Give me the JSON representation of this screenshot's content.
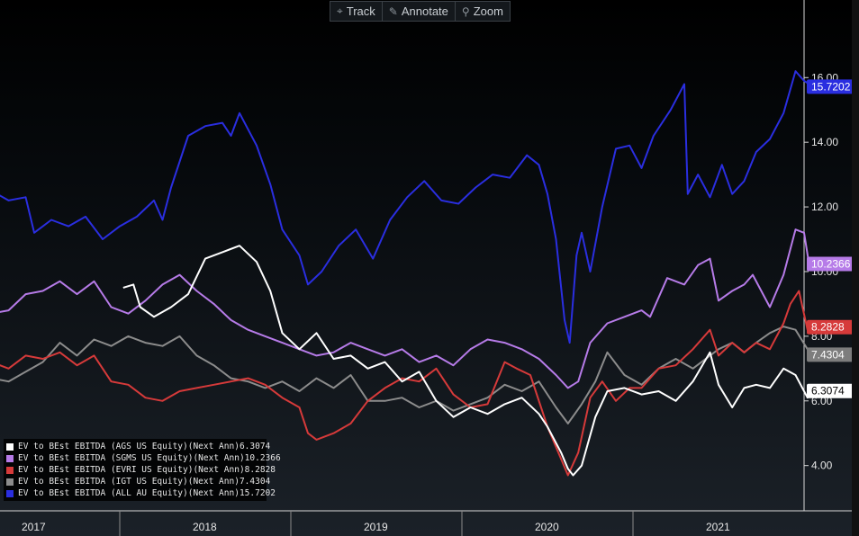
{
  "toolbar": {
    "track_label": "Track",
    "annotate_label": "Annotate",
    "zoom_label": "Zoom",
    "track_icon": "crosshair-icon",
    "annotate_icon": "pencil-icon",
    "zoom_icon": "magnifier-icon"
  },
  "chart_data": {
    "type": "line",
    "title": "",
    "xlabel": "",
    "ylabel": "",
    "ylim": [
      2.6,
      18.4
    ],
    "xlim": [
      2016.8,
      2021.5
    ],
    "yticks": [
      "4.00",
      "6.00",
      "8.00",
      "10.00",
      "12.00",
      "14.00",
      "16.00"
    ],
    "ytick_values": [
      4,
      6,
      8,
      10,
      12,
      14,
      16
    ],
    "xticks": [
      "2017",
      "2018",
      "2019",
      "2020",
      "2021"
    ],
    "xtick_positions": [
      2017.0,
      2018.0,
      2019.0,
      2020.0,
      2021.0
    ],
    "grid": false,
    "legend_position": "bottom-left",
    "series": [
      {
        "name": "EV to BEst EBITDA (AGS US Equity)(Next Ann)",
        "last": "6.3074",
        "color": "#ffffff",
        "points": [
          [
            2017.52,
            9.5
          ],
          [
            2017.58,
            9.6
          ],
          [
            2017.62,
            8.9
          ],
          [
            2017.7,
            8.6
          ],
          [
            2017.8,
            8.9
          ],
          [
            2017.9,
            9.3
          ],
          [
            2018.0,
            10.4
          ],
          [
            2018.1,
            10.6
          ],
          [
            2018.2,
            10.8
          ],
          [
            2018.3,
            10.3
          ],
          [
            2018.38,
            9.4
          ],
          [
            2018.45,
            8.1
          ],
          [
            2018.55,
            7.6
          ],
          [
            2018.65,
            8.1
          ],
          [
            2018.75,
            7.3
          ],
          [
            2018.85,
            7.4
          ],
          [
            2018.95,
            7.0
          ],
          [
            2019.05,
            7.2
          ],
          [
            2019.15,
            6.6
          ],
          [
            2019.25,
            6.9
          ],
          [
            2019.35,
            6.0
          ],
          [
            2019.45,
            5.5
          ],
          [
            2019.55,
            5.8
          ],
          [
            2019.65,
            5.6
          ],
          [
            2019.75,
            5.9
          ],
          [
            2019.85,
            6.1
          ],
          [
            2019.95,
            5.6
          ],
          [
            2020.0,
            5.2
          ],
          [
            2020.08,
            4.4
          ],
          [
            2020.12,
            3.9
          ],
          [
            2020.15,
            3.7
          ],
          [
            2020.2,
            4.0
          ],
          [
            2020.28,
            5.5
          ],
          [
            2020.35,
            6.3
          ],
          [
            2020.45,
            6.4
          ],
          [
            2020.55,
            6.2
          ],
          [
            2020.65,
            6.3
          ],
          [
            2020.75,
            6.0
          ],
          [
            2020.85,
            6.6
          ],
          [
            2020.95,
            7.5
          ],
          [
            2021.0,
            6.5
          ],
          [
            2021.08,
            5.8
          ],
          [
            2021.15,
            6.4
          ],
          [
            2021.22,
            6.5
          ],
          [
            2021.3,
            6.4
          ],
          [
            2021.38,
            7.0
          ],
          [
            2021.45,
            6.8
          ],
          [
            2021.52,
            6.1
          ],
          [
            2021.55,
            6.3074
          ]
        ]
      },
      {
        "name": "EV to BEst EBITDA (SGMS US Equity)(Next Ann)",
        "last": "10.2366",
        "color": "#b67be8",
        "points": [
          [
            2016.75,
            8.7
          ],
          [
            2016.85,
            8.8
          ],
          [
            2016.95,
            9.3
          ],
          [
            2017.05,
            9.4
          ],
          [
            2017.15,
            9.7
          ],
          [
            2017.25,
            9.3
          ],
          [
            2017.35,
            9.7
          ],
          [
            2017.45,
            8.9
          ],
          [
            2017.55,
            8.7
          ],
          [
            2017.65,
            9.1
          ],
          [
            2017.75,
            9.6
          ],
          [
            2017.85,
            9.9
          ],
          [
            2017.95,
            9.4
          ],
          [
            2018.05,
            9.0
          ],
          [
            2018.15,
            8.5
          ],
          [
            2018.25,
            8.2
          ],
          [
            2018.35,
            8.0
          ],
          [
            2018.45,
            7.8
          ],
          [
            2018.55,
            7.6
          ],
          [
            2018.65,
            7.4
          ],
          [
            2018.75,
            7.5
          ],
          [
            2018.85,
            7.8
          ],
          [
            2018.95,
            7.6
          ],
          [
            2019.05,
            7.4
          ],
          [
            2019.15,
            7.6
          ],
          [
            2019.25,
            7.2
          ],
          [
            2019.35,
            7.4
          ],
          [
            2019.45,
            7.1
          ],
          [
            2019.55,
            7.6
          ],
          [
            2019.65,
            7.9
          ],
          [
            2019.75,
            7.8
          ],
          [
            2019.85,
            7.6
          ],
          [
            2019.95,
            7.3
          ],
          [
            2020.05,
            6.8
          ],
          [
            2020.12,
            6.4
          ],
          [
            2020.18,
            6.6
          ],
          [
            2020.25,
            7.8
          ],
          [
            2020.35,
            8.4
          ],
          [
            2020.45,
            8.6
          ],
          [
            2020.55,
            8.8
          ],
          [
            2020.6,
            8.6
          ],
          [
            2020.7,
            9.8
          ],
          [
            2020.8,
            9.6
          ],
          [
            2020.88,
            10.2
          ],
          [
            2020.95,
            10.4
          ],
          [
            2021.0,
            9.1
          ],
          [
            2021.08,
            9.4
          ],
          [
            2021.15,
            9.6
          ],
          [
            2021.2,
            9.9
          ],
          [
            2021.3,
            8.9
          ],
          [
            2021.38,
            9.9
          ],
          [
            2021.45,
            11.3
          ],
          [
            2021.5,
            11.2
          ],
          [
            2021.53,
            10.2
          ],
          [
            2021.55,
            10.2366
          ]
        ]
      },
      {
        "name": "EV to BEst EBITDA (EVRI US Equity)(Next Ann)",
        "last": "8.2828",
        "color": "#d63a3a",
        "points": [
          [
            2016.75,
            7.2
          ],
          [
            2016.85,
            7.0
          ],
          [
            2016.95,
            7.4
          ],
          [
            2017.05,
            7.3
          ],
          [
            2017.15,
            7.5
          ],
          [
            2017.25,
            7.1
          ],
          [
            2017.35,
            7.4
          ],
          [
            2017.45,
            6.6
          ],
          [
            2017.55,
            6.5
          ],
          [
            2017.65,
            6.1
          ],
          [
            2017.75,
            6.0
          ],
          [
            2017.85,
            6.3
          ],
          [
            2017.95,
            6.4
          ],
          [
            2018.05,
            6.5
          ],
          [
            2018.15,
            6.6
          ],
          [
            2018.25,
            6.7
          ],
          [
            2018.35,
            6.5
          ],
          [
            2018.45,
            6.1
          ],
          [
            2018.55,
            5.8
          ],
          [
            2018.6,
            5.0
          ],
          [
            2018.65,
            4.8
          ],
          [
            2018.75,
            5.0
          ],
          [
            2018.85,
            5.3
          ],
          [
            2018.95,
            6.0
          ],
          [
            2019.05,
            6.4
          ],
          [
            2019.15,
            6.7
          ],
          [
            2019.25,
            6.6
          ],
          [
            2019.35,
            7.0
          ],
          [
            2019.45,
            6.2
          ],
          [
            2019.55,
            5.8
          ],
          [
            2019.65,
            5.9
          ],
          [
            2019.75,
            7.2
          ],
          [
            2019.82,
            7.0
          ],
          [
            2019.9,
            6.8
          ],
          [
            2020.0,
            5.2
          ],
          [
            2020.08,
            4.2
          ],
          [
            2020.12,
            3.7
          ],
          [
            2020.18,
            4.4
          ],
          [
            2020.25,
            6.1
          ],
          [
            2020.32,
            6.6
          ],
          [
            2020.4,
            6.0
          ],
          [
            2020.48,
            6.4
          ],
          [
            2020.55,
            6.4
          ],
          [
            2020.65,
            7.0
          ],
          [
            2020.75,
            7.1
          ],
          [
            2020.85,
            7.6
          ],
          [
            2020.95,
            8.2
          ],
          [
            2021.0,
            7.4
          ],
          [
            2021.08,
            7.8
          ],
          [
            2021.15,
            7.5
          ],
          [
            2021.22,
            7.8
          ],
          [
            2021.3,
            7.6
          ],
          [
            2021.38,
            8.4
          ],
          [
            2021.42,
            9.0
          ],
          [
            2021.47,
            9.4
          ],
          [
            2021.52,
            8.2
          ],
          [
            2021.55,
            8.2828
          ]
        ]
      },
      {
        "name": "EV to BEst EBITDA (IGT US Equity)(Next Ann)",
        "last": "7.4304",
        "color": "#8c8c8c",
        "points": [
          [
            2016.75,
            6.7
          ],
          [
            2016.85,
            6.6
          ],
          [
            2016.95,
            6.9
          ],
          [
            2017.05,
            7.2
          ],
          [
            2017.15,
            7.8
          ],
          [
            2017.25,
            7.4
          ],
          [
            2017.35,
            7.9
          ],
          [
            2017.45,
            7.7
          ],
          [
            2017.55,
            8.0
          ],
          [
            2017.65,
            7.8
          ],
          [
            2017.75,
            7.7
          ],
          [
            2017.85,
            8.0
          ],
          [
            2017.95,
            7.4
          ],
          [
            2018.05,
            7.1
          ],
          [
            2018.15,
            6.7
          ],
          [
            2018.25,
            6.6
          ],
          [
            2018.35,
            6.4
          ],
          [
            2018.45,
            6.6
          ],
          [
            2018.55,
            6.3
          ],
          [
            2018.65,
            6.7
          ],
          [
            2018.75,
            6.4
          ],
          [
            2018.85,
            6.8
          ],
          [
            2018.95,
            6.0
          ],
          [
            2019.05,
            6.0
          ],
          [
            2019.15,
            6.1
          ],
          [
            2019.25,
            5.8
          ],
          [
            2019.35,
            6.0
          ],
          [
            2019.45,
            5.7
          ],
          [
            2019.55,
            5.9
          ],
          [
            2019.65,
            6.1
          ],
          [
            2019.75,
            6.5
          ],
          [
            2019.85,
            6.3
          ],
          [
            2019.95,
            6.6
          ],
          [
            2020.05,
            5.8
          ],
          [
            2020.12,
            5.3
          ],
          [
            2020.2,
            5.9
          ],
          [
            2020.28,
            6.6
          ],
          [
            2020.35,
            7.5
          ],
          [
            2020.45,
            6.8
          ],
          [
            2020.55,
            6.5
          ],
          [
            2020.65,
            7.0
          ],
          [
            2020.75,
            7.3
          ],
          [
            2020.85,
            7.0
          ],
          [
            2020.95,
            7.4
          ],
          [
            2021.0,
            7.6
          ],
          [
            2021.08,
            7.8
          ],
          [
            2021.15,
            7.5
          ],
          [
            2021.22,
            7.8
          ],
          [
            2021.3,
            8.1
          ],
          [
            2021.38,
            8.3
          ],
          [
            2021.45,
            8.2
          ],
          [
            2021.52,
            7.6
          ],
          [
            2021.55,
            7.4304
          ]
        ]
      },
      {
        "name": "EV to BEst EBITDA (ALL AU Equity)(Next Ann)",
        "last": "15.7202",
        "color": "#2a2ee0",
        "points": [
          [
            2016.75,
            12.5
          ],
          [
            2016.85,
            12.2
          ],
          [
            2016.95,
            12.3
          ],
          [
            2017.0,
            11.2
          ],
          [
            2017.1,
            11.6
          ],
          [
            2017.2,
            11.4
          ],
          [
            2017.3,
            11.7
          ],
          [
            2017.4,
            11.0
          ],
          [
            2017.5,
            11.4
          ],
          [
            2017.6,
            11.7
          ],
          [
            2017.7,
            12.2
          ],
          [
            2017.75,
            11.6
          ],
          [
            2017.8,
            12.6
          ],
          [
            2017.9,
            14.2
          ],
          [
            2018.0,
            14.5
          ],
          [
            2018.1,
            14.6
          ],
          [
            2018.15,
            14.2
          ],
          [
            2018.2,
            14.9
          ],
          [
            2018.3,
            13.9
          ],
          [
            2018.38,
            12.7
          ],
          [
            2018.45,
            11.3
          ],
          [
            2018.55,
            10.5
          ],
          [
            2018.6,
            9.6
          ],
          [
            2018.68,
            10.0
          ],
          [
            2018.78,
            10.8
          ],
          [
            2018.88,
            11.3
          ],
          [
            2018.98,
            10.4
          ],
          [
            2019.08,
            11.6
          ],
          [
            2019.18,
            12.3
          ],
          [
            2019.28,
            12.8
          ],
          [
            2019.38,
            12.2
          ],
          [
            2019.48,
            12.1
          ],
          [
            2019.58,
            12.6
          ],
          [
            2019.68,
            13.0
          ],
          [
            2019.78,
            12.9
          ],
          [
            2019.88,
            13.6
          ],
          [
            2019.95,
            13.3
          ],
          [
            2020.0,
            12.4
          ],
          [
            2020.05,
            11.0
          ],
          [
            2020.1,
            8.5
          ],
          [
            2020.13,
            7.8
          ],
          [
            2020.17,
            10.5
          ],
          [
            2020.2,
            11.2
          ],
          [
            2020.25,
            10.0
          ],
          [
            2020.32,
            12.0
          ],
          [
            2020.4,
            13.8
          ],
          [
            2020.48,
            13.9
          ],
          [
            2020.55,
            13.2
          ],
          [
            2020.62,
            14.2
          ],
          [
            2020.72,
            15.0
          ],
          [
            2020.8,
            15.8
          ],
          [
            2020.82,
            12.4
          ],
          [
            2020.88,
            13.0
          ],
          [
            2020.95,
            12.3
          ],
          [
            2021.02,
            13.3
          ],
          [
            2021.08,
            12.4
          ],
          [
            2021.15,
            12.8
          ],
          [
            2021.22,
            13.7
          ],
          [
            2021.3,
            14.1
          ],
          [
            2021.38,
            14.9
          ],
          [
            2021.45,
            16.2
          ],
          [
            2021.5,
            15.9
          ],
          [
            2021.53,
            15.8
          ],
          [
            2021.55,
            15.7202
          ]
        ]
      }
    ]
  }
}
